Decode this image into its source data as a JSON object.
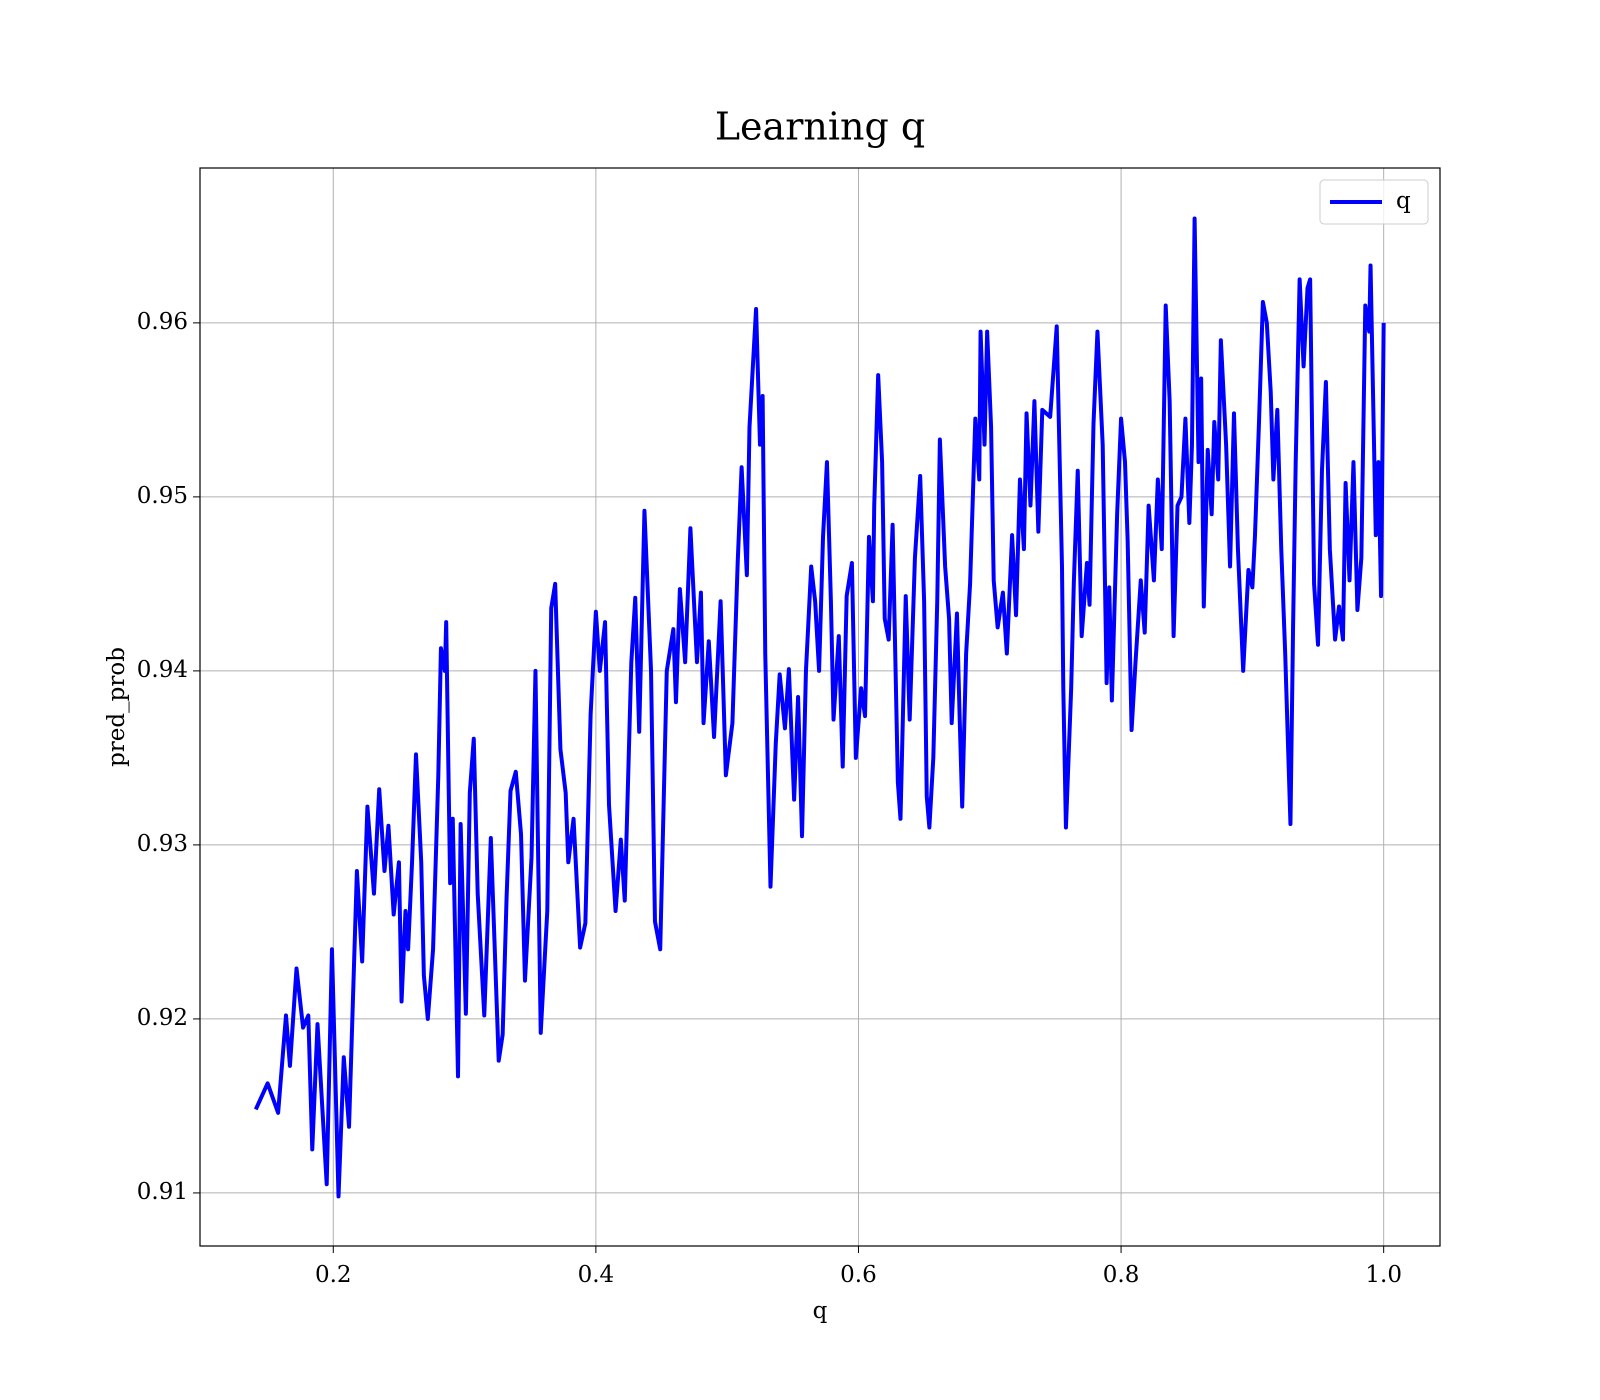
{
  "chart_data": {
    "type": "line",
    "title": "Learning q",
    "xlabel": "q",
    "ylabel": "pred_prob",
    "x": [
      0.141,
      0.15,
      0.158,
      0.164,
      0.167,
      0.172,
      0.177,
      0.181,
      0.184,
      0.188,
      0.195,
      0.199,
      0.204,
      0.208,
      0.212,
      0.218,
      0.222,
      0.226,
      0.231,
      0.235,
      0.239,
      0.242,
      0.246,
      0.25,
      0.252,
      0.255,
      0.257,
      0.26,
      0.263,
      0.267,
      0.269,
      0.272,
      0.276,
      0.28,
      0.282,
      0.285,
      0.286,
      0.289,
      0.291,
      0.295,
      0.297,
      0.301,
      0.304,
      0.307,
      0.31,
      0.315,
      0.32,
      0.326,
      0.329,
      0.332,
      0.335,
      0.339,
      0.343,
      0.346,
      0.351,
      0.354,
      0.358,
      0.363,
      0.366,
      0.369,
      0.373,
      0.377,
      0.379,
      0.383,
      0.388,
      0.392,
      0.396,
      0.4,
      0.403,
      0.407,
      0.41,
      0.415,
      0.419,
      0.422,
      0.427,
      0.43,
      0.433,
      0.437,
      0.442,
      0.445,
      0.449,
      0.454,
      0.459,
      0.461,
      0.464,
      0.468,
      0.472,
      0.477,
      0.48,
      0.482,
      0.486,
      0.49,
      0.495,
      0.499,
      0.504,
      0.508,
      0.511,
      0.515,
      0.517,
      0.522,
      0.525,
      0.527,
      0.529,
      0.533,
      0.537,
      0.54,
      0.544,
      0.547,
      0.551,
      0.554,
      0.557,
      0.56,
      0.564,
      0.567,
      0.57,
      0.573,
      0.576,
      0.579,
      0.581,
      0.585,
      0.588,
      0.591,
      0.595,
      0.598,
      0.602,
      0.605,
      0.608,
      0.611,
      0.612,
      0.615,
      0.618,
      0.62,
      0.623,
      0.626,
      0.63,
      0.632,
      0.636,
      0.639,
      0.643,
      0.647,
      0.65,
      0.652,
      0.654,
      0.657,
      0.66,
      0.662,
      0.666,
      0.669,
      0.671,
      0.675,
      0.677,
      0.679,
      0.682,
      0.685,
      0.689,
      0.692,
      0.693,
      0.696,
      0.698,
      0.701,
      0.703,
      0.706,
      0.71,
      0.713,
      0.717,
      0.72,
      0.723,
      0.726,
      0.728,
      0.731,
      0.734,
      0.737,
      0.74,
      0.746,
      0.751,
      0.755,
      0.756,
      0.758,
      0.762,
      0.764,
      0.767,
      0.77,
      0.774,
      0.776,
      0.779,
      0.782,
      0.786,
      0.789,
      0.791,
      0.793,
      0.797,
      0.8,
      0.803,
      0.805,
      0.808,
      0.811,
      0.815,
      0.818,
      0.821,
      0.825,
      0.828,
      0.831,
      0.834,
      0.837,
      0.84,
      0.843,
      0.846,
      0.849,
      0.852,
      0.854,
      0.856,
      0.859,
      0.861,
      0.863,
      0.866,
      0.869,
      0.871,
      0.874,
      0.876,
      0.88,
      0.883,
      0.886,
      0.889,
      0.893,
      0.897,
      0.9,
      0.902,
      0.905,
      0.908,
      0.911,
      0.914,
      0.916,
      0.919,
      0.922,
      0.925,
      0.929,
      0.931,
      0.933,
      0.936,
      0.939,
      0.942,
      0.944,
      0.947,
      0.95,
      0.953,
      0.956,
      0.959,
      0.963,
      0.966,
      0.969,
      0.971,
      0.974,
      0.977,
      0.98,
      0.983,
      0.986,
      0.989,
      0.99,
      0.994,
      0.996,
      0.998,
      1.0
    ],
    "series": [
      {
        "name": "q",
        "color": "#0000ff",
        "values": [
          0.9148,
          0.9163,
          0.9146,
          0.9202,
          0.9173,
          0.9229,
          0.9195,
          0.9202,
          0.9125,
          0.9197,
          0.9105,
          0.924,
          0.9098,
          0.9178,
          0.9138,
          0.9285,
          0.9233,
          0.9322,
          0.9272,
          0.9332,
          0.9285,
          0.9311,
          0.926,
          0.929,
          0.921,
          0.9262,
          0.924,
          0.929,
          0.9352,
          0.929,
          0.9225,
          0.92,
          0.924,
          0.934,
          0.9413,
          0.94,
          0.9428,
          0.9278,
          0.9315,
          0.9167,
          0.9312,
          0.9203,
          0.933,
          0.9361,
          0.9272,
          0.9202,
          0.9304,
          0.9176,
          0.9191,
          0.927,
          0.9331,
          0.9342,
          0.9306,
          0.9222,
          0.9293,
          0.94,
          0.9192,
          0.9262,
          0.9436,
          0.945,
          0.9355,
          0.933,
          0.929,
          0.9315,
          0.9241,
          0.9255,
          0.9375,
          0.9434,
          0.94,
          0.9428,
          0.9323,
          0.9262,
          0.9303,
          0.9268,
          0.9405,
          0.9442,
          0.9365,
          0.9492,
          0.94,
          0.9256,
          0.924,
          0.94,
          0.9424,
          0.9382,
          0.9447,
          0.9405,
          0.9482,
          0.9405,
          0.9445,
          0.937,
          0.9417,
          0.9362,
          0.944,
          0.934,
          0.937,
          0.9462,
          0.9517,
          0.9455,
          0.954,
          0.9608,
          0.953,
          0.9558,
          0.941,
          0.9276,
          0.9358,
          0.9398,
          0.9367,
          0.9401,
          0.9326,
          0.9385,
          0.9305,
          0.94,
          0.946,
          0.944,
          0.94,
          0.9477,
          0.952,
          0.944,
          0.9372,
          0.942,
          0.9345,
          0.9443,
          0.9462,
          0.935,
          0.939,
          0.9374,
          0.9477,
          0.944,
          0.9495,
          0.957,
          0.952,
          0.943,
          0.9418,
          0.9484,
          0.9336,
          0.9315,
          0.9443,
          0.9372,
          0.9465,
          0.9512,
          0.944,
          0.9328,
          0.931,
          0.935,
          0.944,
          0.9533,
          0.946,
          0.943,
          0.937,
          0.9433,
          0.9375,
          0.9322,
          0.941,
          0.945,
          0.9545,
          0.951,
          0.9595,
          0.953,
          0.9595,
          0.954,
          0.9452,
          0.9425,
          0.9445,
          0.941,
          0.9478,
          0.9432,
          0.951,
          0.947,
          0.9548,
          0.9495,
          0.9555,
          0.948,
          0.955,
          0.9546,
          0.9598,
          0.946,
          0.939,
          0.931,
          0.939,
          0.945,
          0.9515,
          0.942,
          0.9462,
          0.9438,
          0.9542,
          0.9595,
          0.953,
          0.9393,
          0.9448,
          0.9383,
          0.949,
          0.9545,
          0.952,
          0.9475,
          0.9366,
          0.9405,
          0.9452,
          0.9422,
          0.9495,
          0.9452,
          0.951,
          0.947,
          0.961,
          0.9555,
          0.942,
          0.9495,
          0.95,
          0.9545,
          0.9485,
          0.953,
          0.966,
          0.952,
          0.9568,
          0.9437,
          0.9527,
          0.949,
          0.9543,
          0.951,
          0.959,
          0.953,
          0.946,
          0.9548,
          0.947,
          0.94,
          0.9458,
          0.9448,
          0.9478,
          0.9542,
          0.9612,
          0.96,
          0.956,
          0.951,
          0.955,
          0.947,
          0.941,
          0.9312,
          0.9425,
          0.952,
          0.9625,
          0.9575,
          0.962,
          0.9625,
          0.945,
          0.9415,
          0.9515,
          0.9566,
          0.947,
          0.9418,
          0.9437,
          0.9418,
          0.9508,
          0.9452,
          0.952,
          0.9435,
          0.9465,
          0.961,
          0.9595,
          0.9633,
          0.9478,
          0.952,
          0.9443,
          0.96
        ]
      }
    ],
    "xlim": [
      0.0985,
      1.0429
    ],
    "ylim": [
      0.90695,
      0.9689
    ],
    "xticks": [
      0.2,
      0.4,
      0.6,
      0.8,
      {
        "value": 1,
        "label": "1.0"
      }
    ],
    "yticks": [
      0.91,
      0.92,
      0.93,
      0.94,
      0.95,
      0.96
    ],
    "grid": true,
    "legend": "upper right"
  }
}
